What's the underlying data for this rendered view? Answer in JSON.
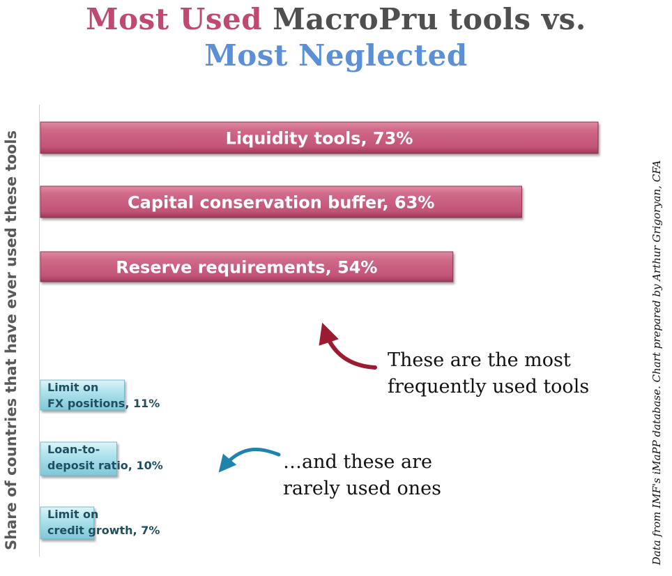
{
  "title": {
    "part1": "Most Used",
    "part2": "MacroPru tools vs.",
    "part3": "Most Neglected"
  },
  "ylabel": "Share of countries that have ever used these tools",
  "source_note": "Data from IMF's iMaPP database. Chart prepared by Arthur Grigoryan, CFA",
  "annotations": {
    "most_used": [
      "These are the most",
      "frequently used tools"
    ],
    "rarely_used": [
      "…and these are",
      "rarely used ones"
    ]
  },
  "colors": {
    "most_used_bar": "#c75c7c",
    "rarely_used_bar": "#a6dfea",
    "title_most_used": "#c04a6f",
    "title_neglected": "#5b8fd6",
    "arrow_most": "#9b1b30",
    "arrow_rare": "#1f84ad"
  },
  "chart_data": {
    "type": "bar",
    "orientation": "horizontal",
    "title": "Most Used MacroPru tools vs. Most Neglected",
    "ylabel": "Share of countries that have ever used these tools",
    "xlim": [
      0,
      100
    ],
    "grid": false,
    "legend": "none",
    "bars": [
      {
        "label_lines": [
          "Liquidity tools, 73%"
        ],
        "value": 73,
        "group": "most_used"
      },
      {
        "label_lines": [
          "Capital conservation buffer, 63%"
        ],
        "value": 63,
        "group": "most_used"
      },
      {
        "label_lines": [
          "Reserve requirements, 54%"
        ],
        "value": 54,
        "group": "most_used"
      },
      {
        "label_lines": [
          "Limit on",
          "FX positions, 11%"
        ],
        "value": 11,
        "group": "rarely_used"
      },
      {
        "label_lines": [
          "Loan-to-",
          "deposit ratio, 10%"
        ],
        "value": 10,
        "group": "rarely_used"
      },
      {
        "label_lines": [
          "Limit on",
          "credit growth, 7%"
        ],
        "value": 7,
        "group": "rarely_used"
      }
    ]
  }
}
